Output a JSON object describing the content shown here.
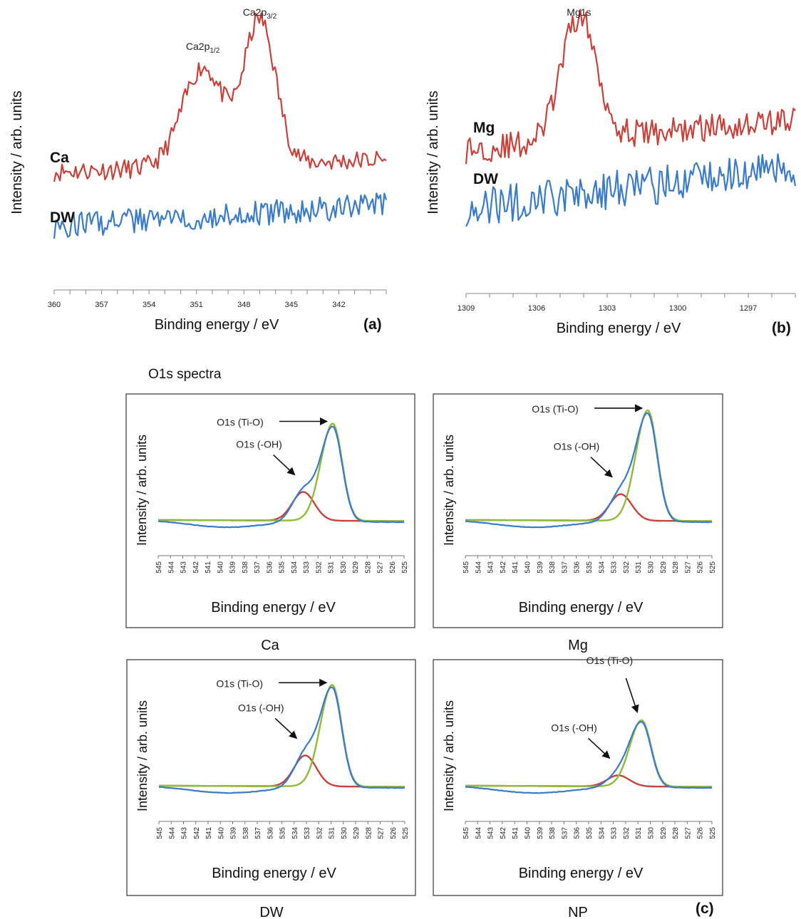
{
  "chart_data": [
    {
      "id": "a",
      "type": "line",
      "panel_label": "(a)",
      "xlabel": "Binding energy / eV",
      "ylabel": "Intensity / arb. units",
      "xlim": [
        360,
        339
      ],
      "x_ticks": [
        360,
        357,
        354,
        351,
        348,
        345,
        342
      ],
      "annotations": [
        {
          "base": "Ca2p",
          "sub": "1/2",
          "x": 350.6
        },
        {
          "base": "Ca2p",
          "sub": "3/2",
          "x": 347.0
        }
      ],
      "series": [
        {
          "name": "Ca",
          "color": "#c8413b",
          "baseline": 0.22,
          "peaks": [
            {
              "center": 350.6,
              "height": 0.4,
              "width": 1.3
            },
            {
              "center": 347.0,
              "height": 0.58,
              "width": 1.0
            }
          ],
          "noise": 0.04,
          "tilt": 0.05
        },
        {
          "name": "DW",
          "color": "#3a7bc8",
          "baseline": 0.0,
          "peaks": [],
          "noise": 0.035,
          "tilt": 0.06
        }
      ]
    },
    {
      "id": "b",
      "type": "line",
      "panel_label": "(b)",
      "xlabel": "Binding energy / eV",
      "ylabel": "Intensity / arb. units",
      "xlim": [
        1309,
        1295
      ],
      "x_ticks": [
        1309,
        1306,
        1303,
        1300,
        1297
      ],
      "annotations": [
        {
          "base": "Mg1s",
          "sub": "",
          "x": 1304.2
        }
      ],
      "series": [
        {
          "name": "Mg",
          "color": "#c8413b",
          "baseline": 0.4,
          "peaks": [
            {
              "center": 1304.2,
              "height": 0.4,
              "width": 0.75
            }
          ],
          "noise": 0.045,
          "tilt": 0.1
        },
        {
          "name": "DW",
          "color": "#3a7bc8",
          "baseline": 0.05,
          "peaks": [],
          "noise": 0.05,
          "tilt": 0.1
        }
      ]
    }
  ],
  "o1s": {
    "title": "O1s spectra",
    "panel_label": "(c)",
    "xlabel": "Binding energy / eV",
    "ylabel": "Intensity / arb. units",
    "xlim": [
      545,
      525
    ],
    "x_ticks": [
      545,
      544,
      543,
      542,
      541,
      540,
      539,
      538,
      537,
      536,
      535,
      534,
      533,
      532,
      531,
      530,
      529,
      528,
      527,
      526,
      525
    ],
    "colors": {
      "measured": "#3a7bc8",
      "ti_o": "#8dbb3a",
      "oh": "#c8413b"
    },
    "ti_o_label": "O1s (Ti-O)",
    "oh_label": "O1s (-OH)",
    "panels": [
      {
        "caption": "Ca",
        "ti_o": {
          "center": 530.8,
          "height": 0.88
        },
        "oh": {
          "center": 533.2,
          "height": 0.26
        }
      },
      {
        "caption": "Mg",
        "ti_o": {
          "center": 530.2,
          "height": 1.0
        },
        "oh": {
          "center": 532.4,
          "height": 0.24
        }
      },
      {
        "caption": "DW",
        "ti_o": {
          "center": 530.9,
          "height": 0.92
        },
        "oh": {
          "center": 533.1,
          "height": 0.28
        }
      },
      {
        "caption": "NP",
        "ti_o": {
          "center": 530.7,
          "height": 0.6
        },
        "oh": {
          "center": 532.6,
          "height": 0.1
        }
      }
    ]
  }
}
